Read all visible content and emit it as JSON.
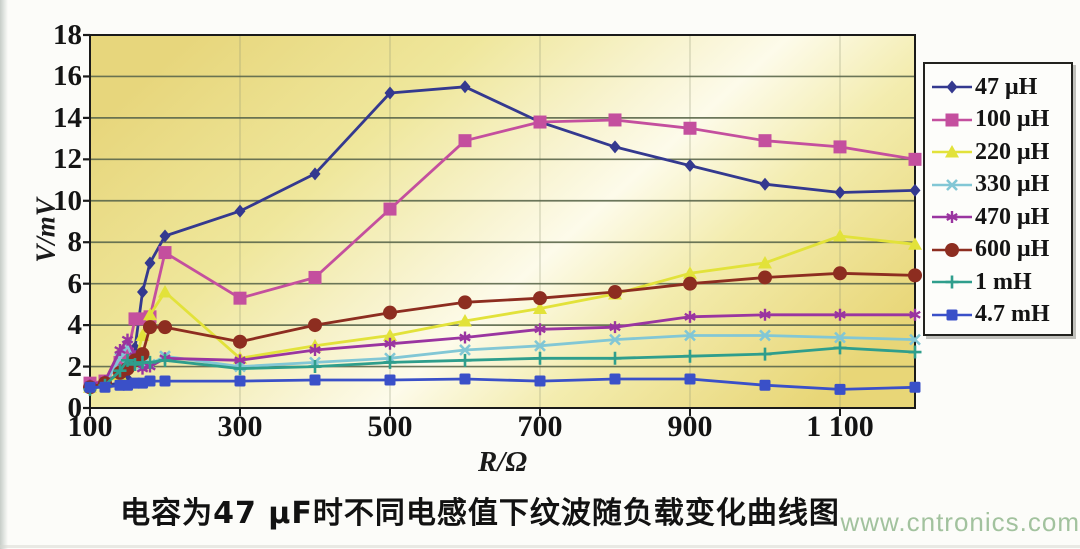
{
  "figure": {
    "caption": "电容为47 μF时不同电感值下纹波随负载变化曲线图",
    "watermark": "www.cntronics.com"
  },
  "chart_data": {
    "type": "line",
    "title": "",
    "xlabel": "R/Ω",
    "ylabel": "V/mV",
    "xlim": [
      100,
      1200
    ],
    "ylim": [
      0,
      18
    ],
    "grid": "horizontal major lines every 2 mV, faint vertical lines at labeled x ticks",
    "legend_position": "right",
    "y_ticks": [
      0,
      2,
      4,
      6,
      8,
      10,
      12,
      14,
      16,
      18
    ],
    "x_ticks": [
      {
        "value": 100,
        "label": "100"
      },
      {
        "value": 300,
        "label": "300"
      },
      {
        "value": 500,
        "label": "500"
      },
      {
        "value": 700,
        "label": "700"
      },
      {
        "value": 900,
        "label": "900"
      },
      {
        "value": 1100,
        "label": "1 100"
      }
    ],
    "x": [
      100,
      120,
      140,
      150,
      160,
      170,
      180,
      200,
      300,
      400,
      500,
      600,
      700,
      800,
      900,
      1000,
      1100,
      1200
    ],
    "series": [
      {
        "name": "47 μH",
        "color": "#34398f",
        "marker": "diamond",
        "values": [
          1.0,
          1.1,
          1.2,
          1.4,
          2.9,
          5.6,
          7.0,
          8.3,
          9.5,
          11.3,
          15.2,
          15.5,
          13.8,
          12.6,
          11.7,
          10.8,
          10.4,
          10.5
        ]
      },
      {
        "name": "100 μH",
        "color": "#c44f9e",
        "marker": "square",
        "values": [
          1.2,
          1.3,
          2.2,
          2.6,
          4.3,
          4.3,
          4.4,
          7.5,
          5.3,
          6.3,
          9.6,
          12.9,
          13.8,
          13.9,
          13.5,
          12.9,
          12.6,
          12.0
        ]
      },
      {
        "name": "220 μH",
        "color": "#e2e23a",
        "marker": "triangle",
        "values": [
          1.0,
          1.2,
          1.6,
          2.0,
          2.2,
          3.5,
          4.5,
          5.6,
          2.4,
          3.0,
          3.5,
          4.2,
          4.8,
          5.5,
          6.5,
          7.0,
          8.3,
          7.9
        ]
      },
      {
        "name": "330 μH",
        "color": "#82c7d5",
        "marker": "x",
        "values": [
          1.0,
          1.2,
          2.4,
          3.0,
          2.2,
          2.1,
          2.1,
          2.5,
          2.0,
          2.2,
          2.4,
          2.8,
          3.0,
          3.3,
          3.5,
          3.5,
          3.4,
          3.3
        ]
      },
      {
        "name": "470 μH",
        "color": "#9a35a0",
        "marker": "asterisk",
        "values": [
          1.1,
          1.3,
          2.8,
          3.3,
          2.5,
          1.9,
          2.0,
          2.4,
          2.3,
          2.8,
          3.1,
          3.4,
          3.8,
          3.9,
          4.4,
          4.5,
          4.5,
          4.5
        ]
      },
      {
        "name": "600 μH",
        "color": "#8d2d20",
        "marker": "circle",
        "values": [
          1.0,
          1.2,
          1.7,
          1.9,
          2.3,
          2.6,
          3.9,
          3.9,
          3.2,
          4.0,
          4.6,
          5.1,
          5.3,
          5.6,
          6.0,
          6.3,
          6.5,
          6.4
        ]
      },
      {
        "name": "1 mH",
        "color": "#2f9e8c",
        "marker": "plus",
        "values": [
          0.9,
          1.1,
          1.8,
          2.3,
          2.1,
          2.2,
          2.2,
          2.3,
          1.9,
          2.0,
          2.2,
          2.3,
          2.4,
          2.4,
          2.5,
          2.6,
          2.9,
          2.7
        ]
      },
      {
        "name": "4.7 mH",
        "color": "#3a50c8",
        "marker": "square2",
        "values": [
          1.0,
          1.0,
          1.1,
          1.1,
          1.2,
          1.2,
          1.3,
          1.3,
          1.3,
          1.35,
          1.35,
          1.4,
          1.3,
          1.4,
          1.4,
          1.1,
          0.9,
          1.0
        ]
      }
    ],
    "plot_bg_stops": [
      {
        "offset": "0%",
        "color": "#e7d67c"
      },
      {
        "offset": "28%",
        "color": "#efe79c"
      },
      {
        "offset": "50%",
        "color": "#f9f5d6"
      },
      {
        "offset": "58%",
        "color": "#fdfbea"
      },
      {
        "offset": "74%",
        "color": "#f3ecae"
      },
      {
        "offset": "100%",
        "color": "#e8d677"
      }
    ],
    "colors": {
      "gridline": "#5c684c",
      "vertical_gridline": "#8a9070",
      "axis_frame": "#1a1a1a",
      "legend_border": "#22221e",
      "tick_text": "#141414",
      "watermark_text": "#a2c29e"
    }
  }
}
